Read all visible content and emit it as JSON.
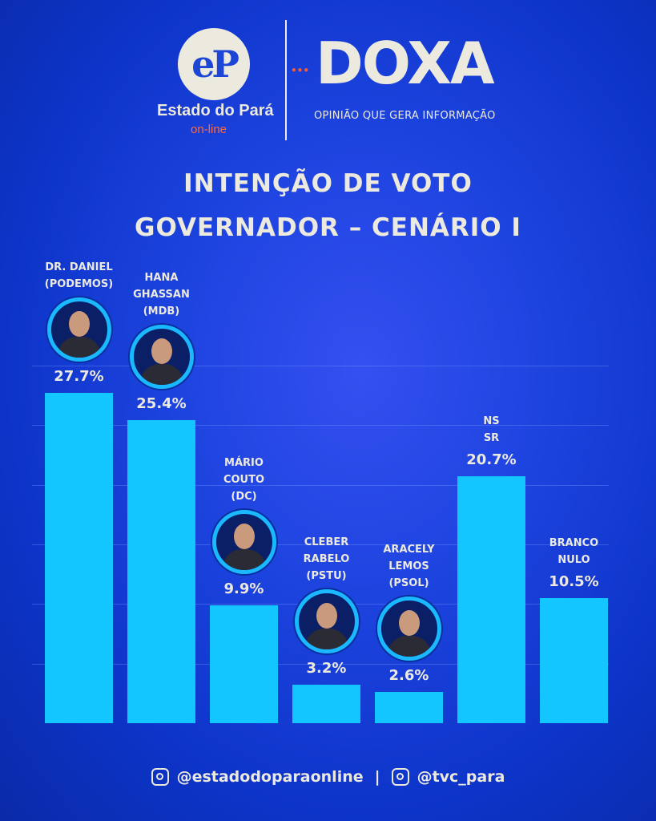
{
  "header": {
    "ep_logo": "eP",
    "ep_name": "Estado do Pará",
    "ep_sub": "on-line",
    "doxa": "DOXA",
    "doxa_dots": "•••",
    "doxa_tag": "OPINIÃO QUE GERA INFORMAÇÃO"
  },
  "chart_data": {
    "type": "bar",
    "title": [
      "INTENÇÃO DE VOTO",
      "GOVERNADOR – CENÁRIO I"
    ],
    "categories": [
      {
        "lines": [
          "DR. DANIEL",
          "(PODEMOS)"
        ],
        "photo": true
      },
      {
        "lines": [
          "HANA",
          "GHASSAN",
          "(MDB)"
        ],
        "photo": true
      },
      {
        "lines": [
          "MÁRIO",
          "COUTO",
          "(DC)"
        ],
        "photo": true
      },
      {
        "lines": [
          "CLEBER",
          "RABELO",
          "(PSTU)"
        ],
        "photo": true
      },
      {
        "lines": [
          "ARACELY",
          "LEMOS",
          "(PSOL)"
        ],
        "photo": true
      },
      {
        "lines": [
          "NS",
          "SR"
        ],
        "photo": false
      },
      {
        "lines": [
          "BRANCO",
          "NULO"
        ],
        "photo": false
      }
    ],
    "values": [
      27.7,
      25.4,
      9.9,
      3.2,
      2.6,
      20.7,
      10.5
    ],
    "labels": [
      "27.7%",
      "25.4%",
      "9.9%",
      "3.2%",
      "2.6%",
      "20.7%",
      "10.5%"
    ],
    "ylim": [
      0,
      30
    ],
    "gridlines": [
      5,
      10,
      15,
      20,
      25,
      30
    ],
    "grid": true,
    "bar_color": "#13c6ff"
  },
  "footer": {
    "handle1": "@estadodoparaonline",
    "sep": "|",
    "handle2": "@tvc_para"
  }
}
